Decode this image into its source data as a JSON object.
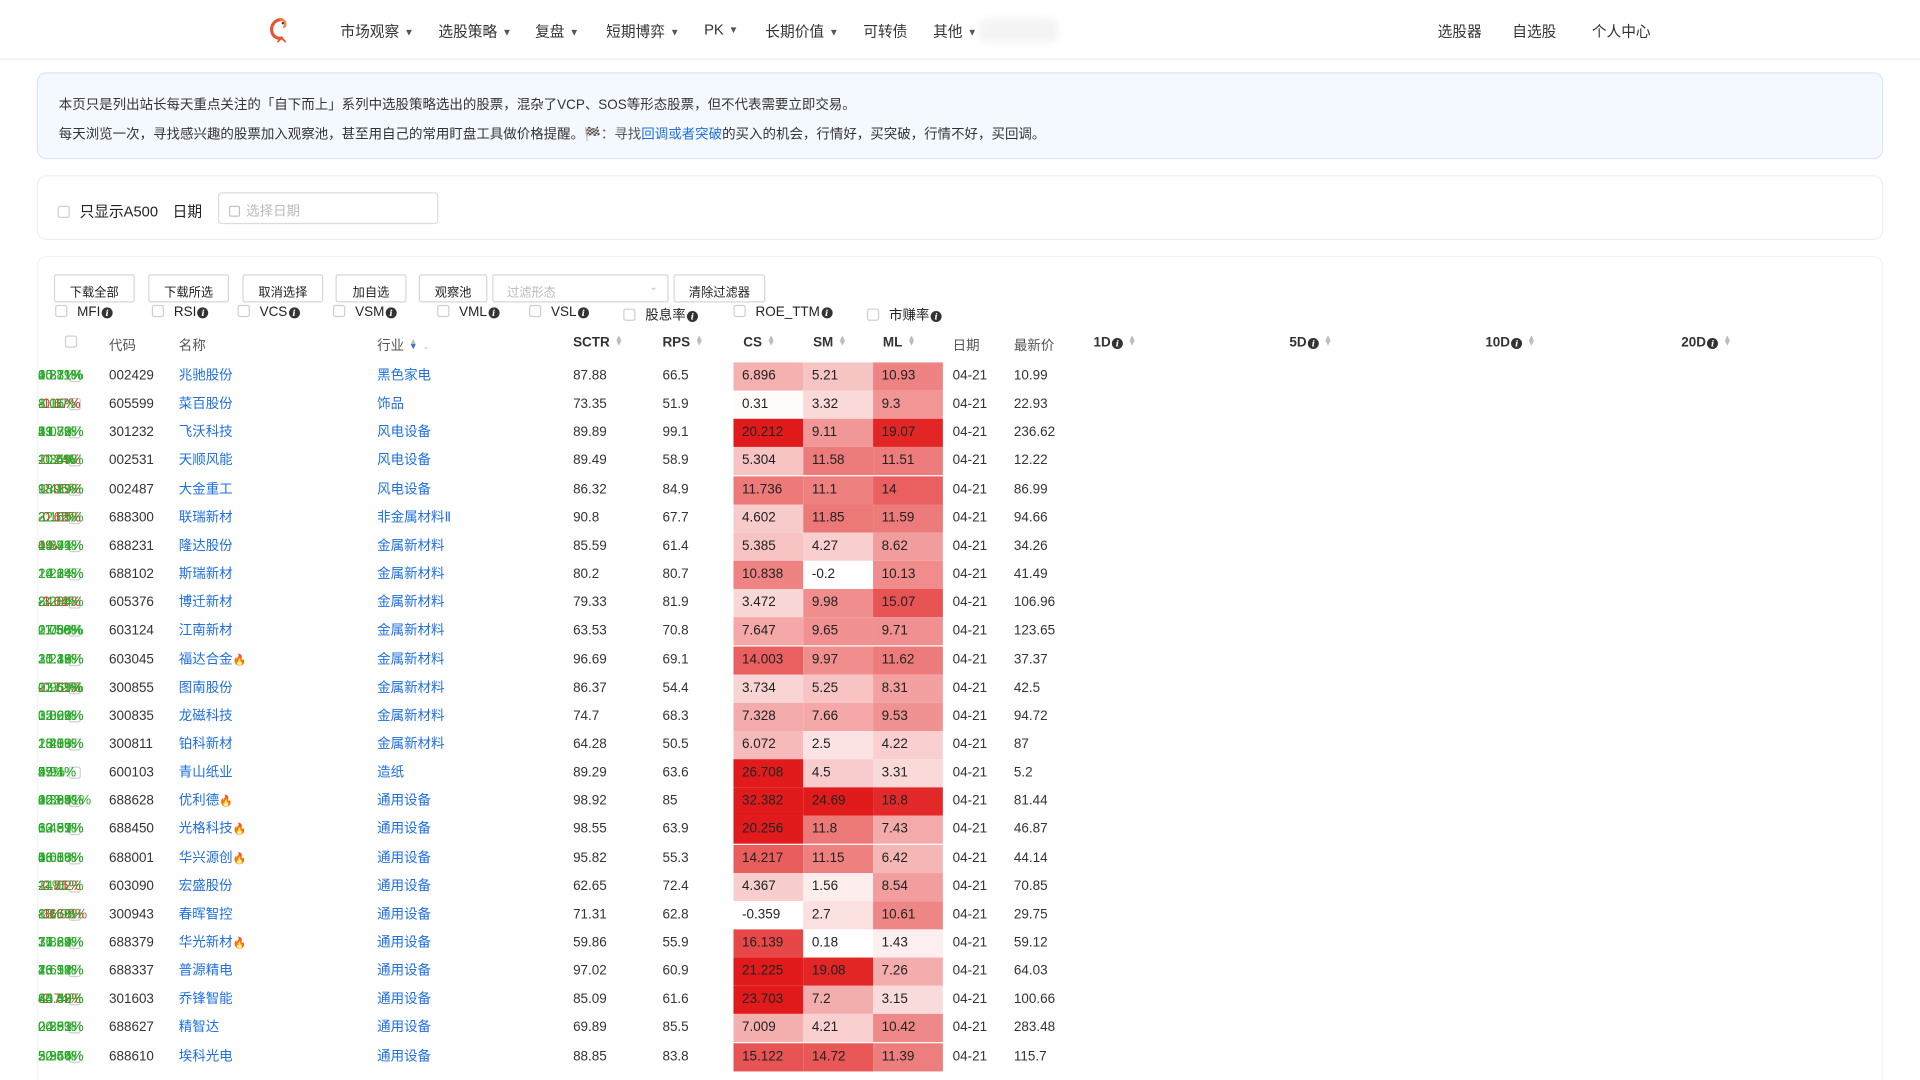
{
  "nav": {
    "menus": [
      {
        "label": "市场观察",
        "dropdown": true
      },
      {
        "label": "选股策略",
        "dropdown": true
      },
      {
        "label": "复盘",
        "dropdown": true
      },
      {
        "label": "短期博弈",
        "dropdown": true
      },
      {
        "label": "PK",
        "dropdown": true
      },
      {
        "label": "长期价值",
        "dropdown": true
      },
      {
        "label": "可转债",
        "dropdown": false
      },
      {
        "label": "其他",
        "dropdown": true
      }
    ],
    "right": [
      "选股器",
      "自选股",
      "个人中心"
    ]
  },
  "notice": {
    "line1": "本页只是列出站长每天重点关注的「自下而上」系列中选股策略选出的股票，混杂了VCP、SOS等形态股票，但不代表需要立即交易。",
    "line2_pre": "每天浏览一次，寻找感兴趣的股票加入观察池，甚至用自己的常用盯盘工具做价格提醒。",
    "line2_flag": "🏁：寻找",
    "line2_link": "回调或者突破",
    "line2_post": "的买入的机会，行情好，买突破，行情不好，买回调。"
  },
  "filters": {
    "a500_label": "只显示A500",
    "date_label": "日期",
    "date_placeholder": "选择日期"
  },
  "toolbar": {
    "buttons": [
      "下载全部",
      "下载所选",
      "取消选择",
      "加自选",
      "观察池"
    ],
    "pattern_placeholder": "过滤形态",
    "clear_label": "清除过滤器",
    "indicators": [
      "MFI",
      "RSI",
      "VCS",
      "VSM",
      "VML",
      "VSL",
      "股息率",
      "ROE_TTM",
      "市赚率"
    ]
  },
  "table": {
    "headers": {
      "code": "代码",
      "name": "名称",
      "industry": "行业",
      "sctr": "SCTR",
      "rps": "RPS",
      "cs": "CS",
      "sm": "SM",
      "ml": "ML",
      "date": "日期",
      "price": "最新价",
      "d1": "1D",
      "d5": "5D",
      "d10": "10D",
      "d20": "20D"
    },
    "rows": [
      {
        "code": "002429",
        "name": "兆驰股份",
        "hot": false,
        "industry": "黑色家电",
        "sctr": "87.88",
        "rps": "66.5",
        "cs": "6.896",
        "sm": "5.21",
        "ml": "10.93",
        "date": "04-21",
        "price": "10.99",
        "d1": "0.27%",
        "d5": "4.87%",
        "d10": "15.81%",
        "d20": "20.11%"
      },
      {
        "code": "605599",
        "name": "菜百股份",
        "hot": false,
        "industry": "饰品",
        "sctr": "73.35",
        "rps": "51.9",
        "cs": "0.31",
        "sm": "3.32",
        "ml": "9.3",
        "date": "04-21",
        "price": "22.93",
        "d1": "-1.67%",
        "d5": "-0.17%",
        "d10": "1.01%",
        "d20": "8.16%"
      },
      {
        "code": "301232",
        "name": "飞沃科技",
        "hot": false,
        "industry": "风电设备",
        "sctr": "89.89",
        "rps": "99.1",
        "cs": "20.212",
        "sm": "9.11",
        "ml": "19.07",
        "date": "04-21",
        "price": "236.62",
        "d1": "1.08%",
        "d5": "21.32%",
        "d10": "53.7%",
        "d20": "49.76%"
      },
      {
        "code": "002531",
        "name": "天顺风能",
        "hot": false,
        "industry": "风电设备",
        "sctr": "89.49",
        "rps": "58.9",
        "cs": "5.304",
        "sm": "11.58",
        "ml": "11.51",
        "date": "04-21",
        "price": "12.22",
        "d1": "-0.24%",
        "d5": "2.35%",
        "d10": "10.49%",
        "d20": "11.6%"
      },
      {
        "code": "002487",
        "name": "大金重工",
        "hot": false,
        "industry": "风电设备",
        "sctr": "86.32",
        "rps": "84.9",
        "cs": "11.736",
        "sm": "11.1",
        "ml": "14",
        "date": "04-21",
        "price": "86.99",
        "d1": "-2.95%",
        "d5": "9.41%",
        "d10": "18.29%",
        "d20": "18.89%"
      },
      {
        "code": "688300",
        "name": "联瑞新材",
        "hot": false,
        "industry": "非金属材料Ⅱ",
        "sctr": "90.8",
        "rps": "67.7",
        "cs": "4.602",
        "sm": "11.85",
        "ml": "11.59",
        "date": "04-21",
        "price": "94.66",
        "d1": "-0.15%",
        "d5": "-0.62%",
        "d10": "3.16%",
        "d20": "22.65%"
      },
      {
        "code": "688231",
        "name": "隆达股份",
        "hot": false,
        "industry": "金属新材料",
        "sctr": "85.59",
        "rps": "61.4",
        "cs": "5.385",
        "sm": "4.27",
        "ml": "8.62",
        "date": "04-21",
        "price": "34.26",
        "d1": "0%",
        "d5": "4.39%",
        "d10": "19.41%",
        "d20": "14.74%"
      },
      {
        "code": "688102",
        "name": "斯瑞新材",
        "hot": false,
        "industry": "金属新材料",
        "sctr": "80.2",
        "rps": "80.7",
        "cs": "10.838",
        "sm": "-0.2",
        "ml": "10.13",
        "date": "04-21",
        "price": "41.49",
        "d1": "1.22%",
        "d5": "14.14%",
        "d10": "24.3%",
        "d20": "19.64%"
      },
      {
        "code": "605376",
        "name": "博迁新材",
        "hot": false,
        "industry": "金属新材料",
        "sctr": "79.33",
        "rps": "81.9",
        "cs": "3.472",
        "sm": "9.98",
        "ml": "15.07",
        "date": "04-21",
        "price": "106.96",
        "d1": "-1.01%",
        "d5": "-3.64%",
        "d10": "8.28%",
        "d20": "24.04%"
      },
      {
        "code": "603124",
        "name": "江南新材",
        "hot": false,
        "industry": "金属新材料",
        "sctr": "63.53",
        "rps": "70.8",
        "cs": "7.647",
        "sm": "9.65",
        "ml": "9.71",
        "date": "04-21",
        "price": "123.65",
        "d1": "0.73%",
        "d5": "2.06%",
        "d10": "11.56%",
        "d20": "27.68%"
      },
      {
        "code": "603045",
        "name": "福达合金",
        "hot": true,
        "industry": "金属新材料",
        "sctr": "96.69",
        "rps": "69.1",
        "cs": "14.003",
        "sm": "9.97",
        "ml": "11.62",
        "date": "04-21",
        "price": "37.37",
        "d1": "2.24%",
        "d5": "15.38%",
        "d10": "31.12%",
        "d20": "30.16%"
      },
      {
        "code": "300855",
        "name": "图南股份",
        "hot": false,
        "industry": "金属新材料",
        "sctr": "86.37",
        "rps": "54.4",
        "cs": "3.734",
        "sm": "5.25",
        "ml": "8.31",
        "date": "04-21",
        "price": "42.5",
        "d1": "0.95%",
        "d5": "-0.72%",
        "d10": "11.61%",
        "d20": "23.69%"
      },
      {
        "code": "300835",
        "name": "龙磁科技",
        "hot": false,
        "industry": "金属新材料",
        "sctr": "74.7",
        "rps": "68.3",
        "cs": "7.328",
        "sm": "7.66",
        "ml": "9.53",
        "date": "04-21",
        "price": "94.72",
        "d1": "0.02%",
        "d5": "3.86%",
        "d10": "15.02%",
        "d20": "32.96%"
      },
      {
        "code": "300811",
        "name": "铂科新材",
        "hot": false,
        "industry": "金属新材料",
        "sctr": "64.28",
        "rps": "50.5",
        "cs": "6.072",
        "sm": "2.5",
        "ml": "4.22",
        "date": "04-21",
        "price": "87",
        "d1": "1.21%",
        "d5": "2.49%",
        "d10": "15.09%",
        "d20": "18.58%"
      },
      {
        "code": "600103",
        "name": "青山纸业",
        "hot": false,
        "industry": "造纸",
        "sctr": "89.29",
        "rps": "63.6",
        "cs": "26.708",
        "sm": "4.5",
        "ml": "3.31",
        "date": "04-21",
        "price": "5.2",
        "d1": "9.94%",
        "d5": "25%",
        "d10": "49%",
        "d20": "57.1%"
      },
      {
        "code": "688628",
        "name": "优利德",
        "hot": true,
        "industry": "通用设备",
        "sctr": "98.92",
        "rps": "85",
        "cs": "32.382",
        "sm": "24.69",
        "ml": "18.8",
        "date": "04-21",
        "price": "81.44",
        "d1": "0.36%",
        "d5": "22.84%",
        "d10": "45.95%",
        "d20": "103.91%"
      },
      {
        "code": "688450",
        "name": "光格科技",
        "hot": true,
        "industry": "通用设备",
        "sctr": "98.55",
        "rps": "63.9",
        "cs": "20.256",
        "sm": "11.8",
        "ml": "7.43",
        "date": "04-21",
        "price": "46.87",
        "d1": "6.45%",
        "d5": "12.99%",
        "d10": "30.67%",
        "d20": "63.31%"
      },
      {
        "code": "688001",
        "name": "华兴源创",
        "hot": true,
        "industry": "通用设备",
        "sctr": "95.82",
        "rps": "55.3",
        "cs": "14.217",
        "sm": "11.15",
        "ml": "6.42",
        "date": "04-21",
        "price": "44.14",
        "d1": "0.66%",
        "d5": "4.08%",
        "d10": "18.18%",
        "d20": "56.58%"
      },
      {
        "code": "603090",
        "name": "宏盛股份",
        "hot": false,
        "industry": "通用设备",
        "sctr": "62.65",
        "rps": "72.4",
        "cs": "4.367",
        "sm": "1.56",
        "ml": "8.54",
        "date": "04-21",
        "price": "70.85",
        "d1": "-2.75%",
        "d5": "-0.81%",
        "d10": "11%",
        "d20": "24.02%"
      },
      {
        "code": "300943",
        "name": "春晖智控",
        "hot": false,
        "industry": "通用设备",
        "sctr": "71.31",
        "rps": "62.8",
        "cs": "-0.359",
        "sm": "2.7",
        "ml": "10.61",
        "date": "04-21",
        "price": "29.75",
        "d1": "-3%",
        "d5": "-11.98%",
        "d10": "13.68%",
        "d20": "8.66%"
      },
      {
        "code": "688379",
        "name": "华光新材",
        "hot": true,
        "industry": "通用设备",
        "sctr": "59.86",
        "rps": "55.9",
        "cs": "16.139",
        "sm": "0.18",
        "ml": "1.43",
        "date": "04-21",
        "price": "59.12",
        "d1": "7.82%",
        "d5": "17.89%",
        "d10": "31.64%",
        "d20": "36.22%"
      },
      {
        "code": "688337",
        "name": "普源精电",
        "hot": false,
        "industry": "通用设备",
        "sctr": "97.02",
        "rps": "60.9",
        "cs": "21.225",
        "sm": "19.08",
        "ml": "7.26",
        "date": "04-21",
        "price": "64.03",
        "d1": "2.61%",
        "d5": "16.12%",
        "d10": "40.54%",
        "d20": "73.9%"
      },
      {
        "code": "301603",
        "name": "乔锋智能",
        "hot": false,
        "industry": "通用设备",
        "sctr": "85.09",
        "rps": "61.6",
        "cs": "23.703",
        "sm": "7.2",
        "ml": "3.15",
        "date": "04-21",
        "price": "100.66",
        "d1": "-2.74%",
        "d5": "33.32%",
        "d10": "44.48%",
        "d20": "60.59%"
      },
      {
        "code": "688627",
        "name": "精智达",
        "hot": false,
        "industry": "通用设备",
        "sctr": "69.89",
        "rps": "85.5",
        "cs": "7.009",
        "sm": "4.21",
        "ml": "10.42",
        "date": "04-21",
        "price": "283.48",
        "d1": "0.35%",
        "d5": "0.29%",
        "d10": "20.61%",
        "d20": "24.33%"
      },
      {
        "code": "688610",
        "name": "埃科光电",
        "hot": false,
        "industry": "通用设备",
        "sctr": "88.85",
        "rps": "83.8",
        "cs": "15.122",
        "sm": "14.72",
        "ml": "11.39",
        "date": "04-21",
        "price": "115.7",
        "d1": "2.34%",
        "d5": "5.95%",
        "d10": "30.66%",
        "d20": "52.64%"
      }
    ]
  }
}
